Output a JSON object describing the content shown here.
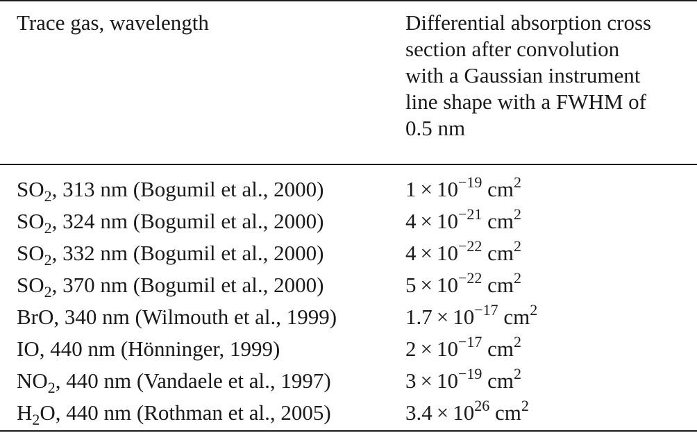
{
  "table": {
    "header": {
      "col1": "Trace gas, wavelength",
      "col2_lines": [
        "Differential absorption cross",
        "section after convolution",
        "with a Gaussian instrument",
        "line shape with a FWHM of",
        "0.5 nm"
      ]
    },
    "rows": [
      {
        "species": "SO",
        "species_sub": "2",
        "species_tail": "",
        "wavelength_ref": ", 313 nm (Bogumil et al., 2000)",
        "mantissa": "1",
        "times": "×",
        "base": "10",
        "exponent": "−19",
        "unit": "cm",
        "unit_exp": "2"
      },
      {
        "species": "SO",
        "species_sub": "2",
        "species_tail": "",
        "wavelength_ref": ", 324 nm (Bogumil et al., 2000)",
        "mantissa": "4",
        "times": "×",
        "base": "10",
        "exponent": "−21",
        "unit": "cm",
        "unit_exp": "2"
      },
      {
        "species": "SO",
        "species_sub": "2",
        "species_tail": "",
        "wavelength_ref": ", 332 nm (Bogumil et al., 2000)",
        "mantissa": "4",
        "times": "×",
        "base": "10",
        "exponent": "−22",
        "unit": "cm",
        "unit_exp": "2"
      },
      {
        "species": "SO",
        "species_sub": "2",
        "species_tail": "",
        "wavelength_ref": ", 370 nm (Bogumil et al., 2000)",
        "mantissa": "5",
        "times": "×",
        "base": "10",
        "exponent": "−22",
        "unit": "cm",
        "unit_exp": "2"
      },
      {
        "species": "BrO",
        "species_sub": "",
        "species_tail": "",
        "wavelength_ref": ", 340 nm (Wilmouth et al., 1999)",
        "mantissa": "1.7",
        "times": "×",
        "base": "10",
        "exponent": "−17",
        "unit": "cm",
        "unit_exp": "2"
      },
      {
        "species": "IO",
        "species_sub": "",
        "species_tail": "",
        "wavelength_ref": ", 440 nm (Hönninger, 1999)",
        "mantissa": "2",
        "times": "×",
        "base": "10",
        "exponent": "−17",
        "unit": "cm",
        "unit_exp": "2"
      },
      {
        "species": "NO",
        "species_sub": "2",
        "species_tail": "",
        "wavelength_ref": ", 440 nm (Vandaele et al., 1997)",
        "mantissa": "3",
        "times": "×",
        "base": "10",
        "exponent": "−19",
        "unit": "cm",
        "unit_exp": "2"
      },
      {
        "species": "H",
        "species_sub": "2",
        "species_tail": "O",
        "wavelength_ref": ", 440 nm (Rothman et al., 2005)",
        "mantissa": "3.4",
        "times": "×",
        "base": "10",
        "exponent": "26",
        "unit": "cm",
        "unit_exp": "2"
      }
    ]
  }
}
